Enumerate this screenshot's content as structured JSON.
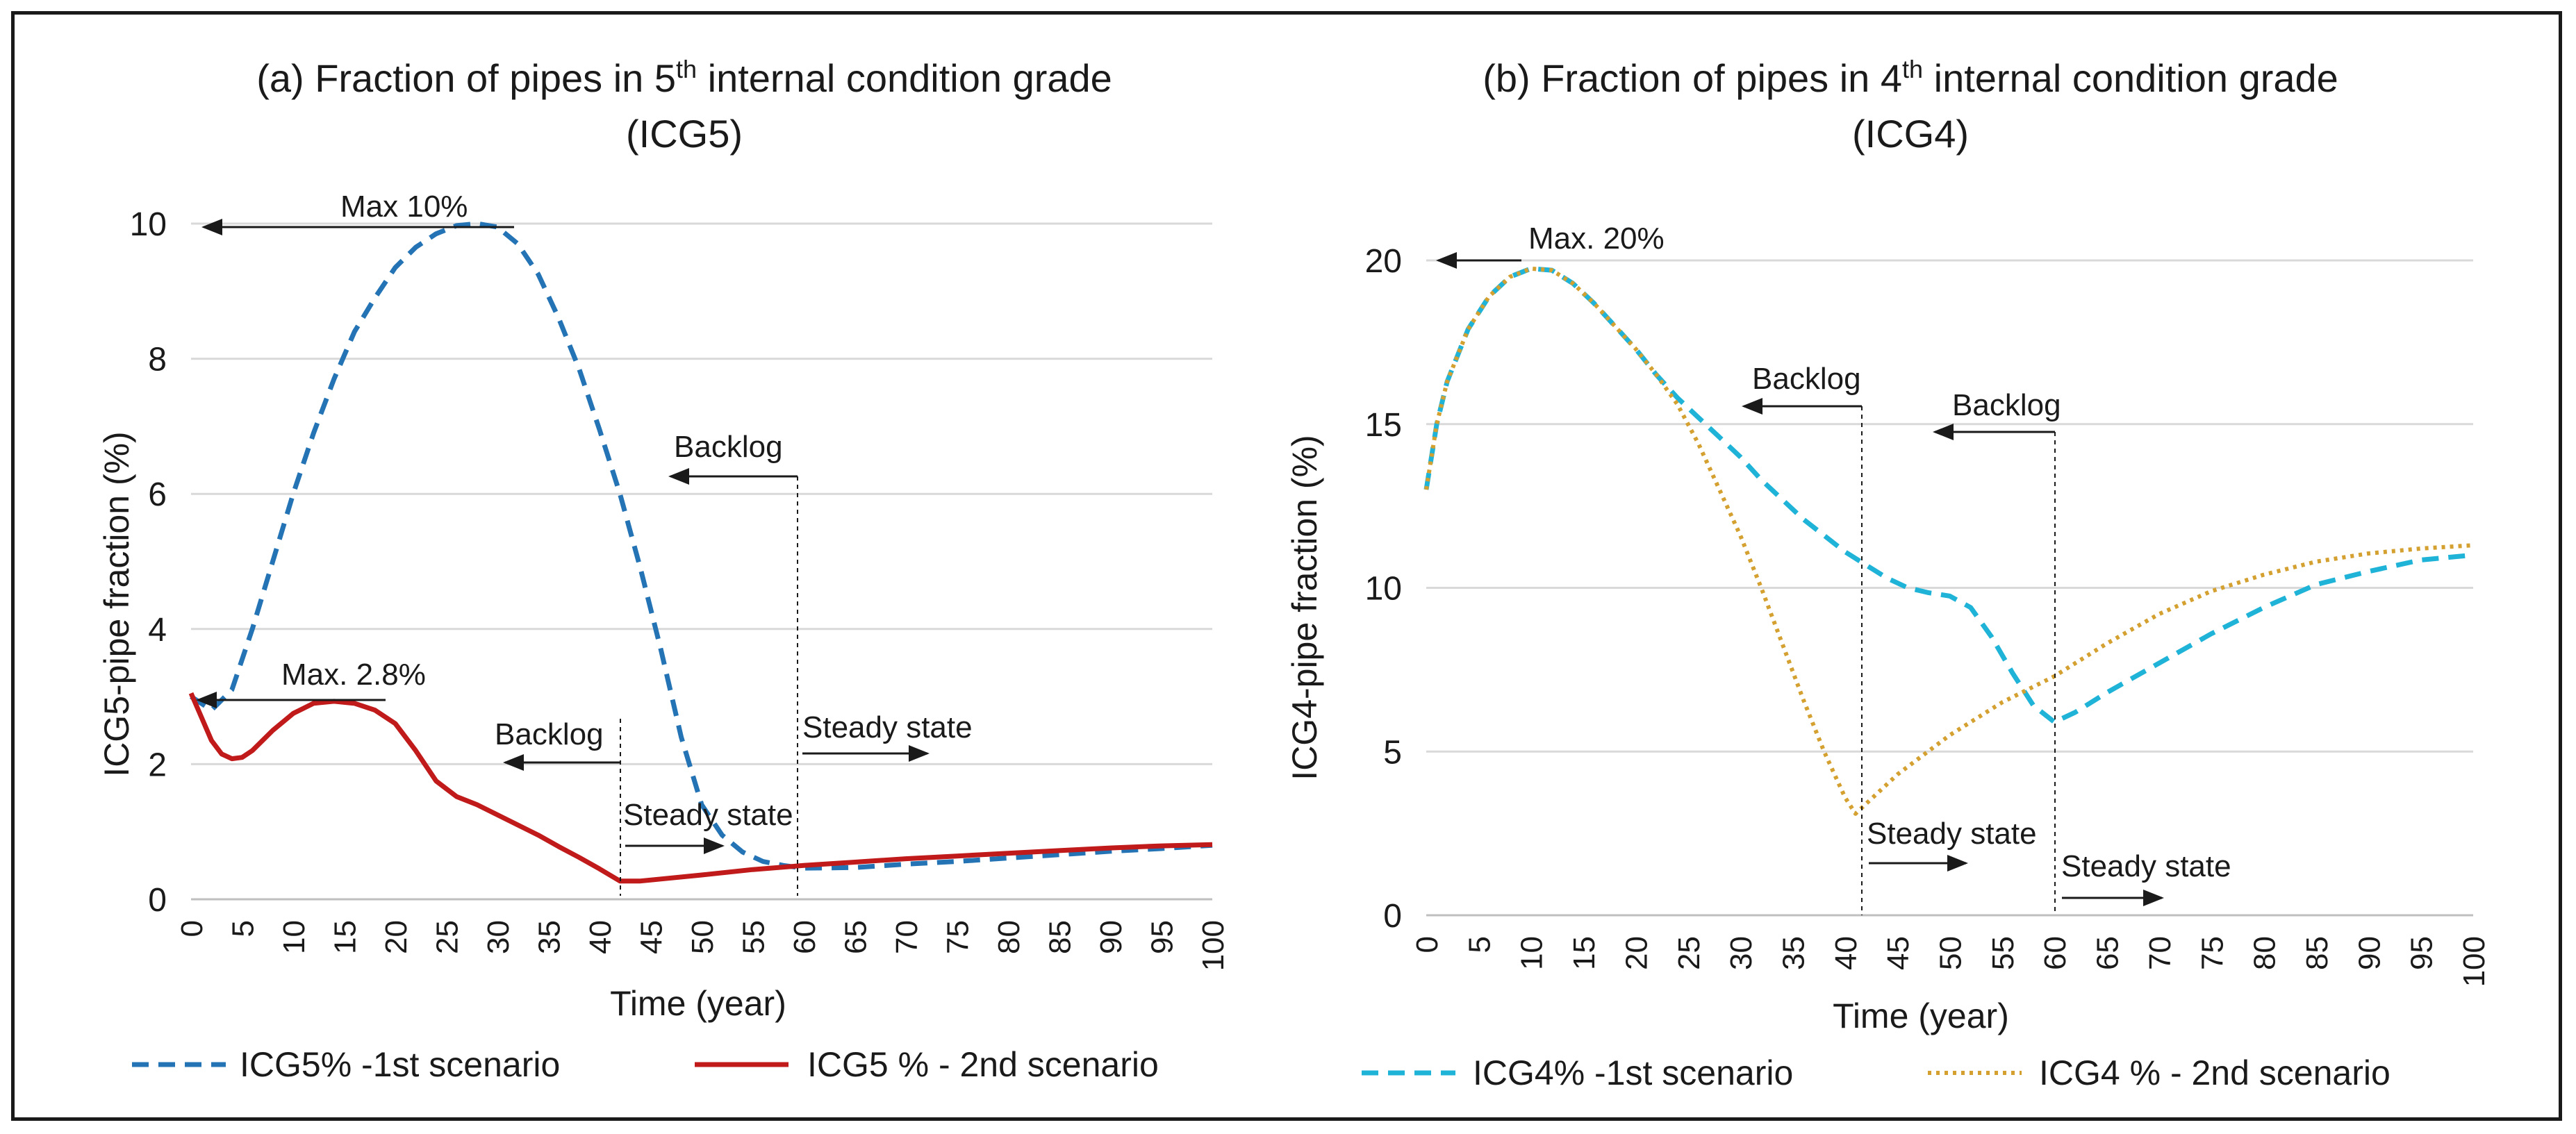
{
  "chart_data": [
    {
      "type": "line",
      "title": "(a) Fraction of pipes in 5",
      "title_sup": "th",
      "title_rest": " internal condition grade",
      "title_line2": "(ICG5)",
      "xlabel": "Time (year)",
      "ylabel": "ICG5-pipe fraction (%)",
      "xlim": [
        0,
        100
      ],
      "ylim": [
        0,
        10
      ],
      "x_ticks": [
        "0",
        "5",
        "10",
        "15",
        "20",
        "25",
        "30",
        "35",
        "40",
        "45",
        "50",
        "55",
        "60",
        "65",
        "70",
        "75",
        "80",
        "85",
        "90",
        "95",
        "100"
      ],
      "y_ticks": [
        "0",
        "2",
        "4",
        "6",
        "8",
        "10"
      ],
      "grid": "horizontal",
      "legend_position": "bottom",
      "series": [
        {
          "name": "ICG5% -1st scenario",
          "color": "#2474b5",
          "style": "dashed",
          "x": [
            0,
            2,
            4,
            6,
            8,
            10,
            12,
            14,
            16,
            18,
            20,
            22,
            24,
            26,
            28,
            30,
            32,
            34,
            36,
            38,
            40,
            42,
            44,
            46,
            48,
            50,
            52,
            54,
            56,
            58,
            60,
            65,
            70,
            75,
            80,
            85,
            90,
            95,
            100
          ],
          "y": [
            3.0,
            2.8,
            3.1,
            4.0,
            5.0,
            6.0,
            6.9,
            7.7,
            8.4,
            8.9,
            9.35,
            9.65,
            9.85,
            9.97,
            10.0,
            9.95,
            9.7,
            9.25,
            8.6,
            7.85,
            6.95,
            6.0,
            4.9,
            3.7,
            2.4,
            1.4,
            0.95,
            0.7,
            0.56,
            0.5,
            0.46,
            0.47,
            0.52,
            0.56,
            0.61,
            0.66,
            0.71,
            0.75,
            0.8
          ]
        },
        {
          "name": "ICG5 % - 2nd scenario",
          "color": "#c01a1a",
          "style": "solid",
          "x": [
            0,
            1,
            2,
            3,
            4,
            5,
            6,
            8,
            10,
            12,
            14,
            16,
            18,
            20,
            22,
            24,
            26,
            28,
            30,
            32,
            34,
            36,
            38,
            40,
            42,
            44,
            46,
            50,
            55,
            60,
            65,
            70,
            75,
            80,
            85,
            90,
            95,
            100
          ],
          "y": [
            3.05,
            2.7,
            2.35,
            2.15,
            2.08,
            2.1,
            2.2,
            2.5,
            2.75,
            2.9,
            2.93,
            2.9,
            2.8,
            2.6,
            2.2,
            1.75,
            1.52,
            1.4,
            1.25,
            1.1,
            0.95,
            0.78,
            0.62,
            0.45,
            0.27,
            0.27,
            0.3,
            0.36,
            0.44,
            0.5,
            0.55,
            0.6,
            0.64,
            0.68,
            0.72,
            0.76,
            0.79,
            0.81
          ]
        }
      ],
      "annotations": {
        "max1": "Max 10%",
        "max2": "Max. 2.8%",
        "backlog1": "Backlog",
        "backlog2": "Backlog",
        "steady1": "Steady state",
        "steady2": "Steady state"
      }
    },
    {
      "type": "line",
      "title": "(b) Fraction of pipes in 4",
      "title_sup": "th",
      "title_rest": " internal condition grade",
      "title_line2": "(ICG4)",
      "xlabel": "Time (year)",
      "ylabel": "ICG4-pipe fraction (%)",
      "xlim": [
        0,
        100
      ],
      "ylim": [
        0,
        20
      ],
      "x_ticks": [
        "0",
        "5",
        "10",
        "15",
        "20",
        "25",
        "30",
        "35",
        "40",
        "45",
        "50",
        "55",
        "60",
        "65",
        "70",
        "75",
        "80",
        "85",
        "90",
        "95",
        "100"
      ],
      "y_ticks": [
        "0",
        "5",
        "10",
        "15",
        "20"
      ],
      "grid": "horizontal",
      "legend_position": "bottom",
      "series": [
        {
          "name": "ICG4% -1st scenario",
          "color": "#1fb3d8",
          "style": "dashed",
          "x": [
            0,
            1,
            2,
            4,
            6,
            8,
            10,
            12,
            14,
            16,
            18,
            20,
            22,
            24,
            26,
            28,
            30,
            32,
            34,
            36,
            38,
            40,
            42,
            44,
            46,
            48,
            50,
            52,
            54,
            56,
            58,
            60,
            62,
            65,
            70,
            75,
            80,
            85,
            90,
            95,
            100
          ],
          "y": [
            13.0,
            15.0,
            16.3,
            17.9,
            18.9,
            19.5,
            19.75,
            19.7,
            19.3,
            18.7,
            18.0,
            17.3,
            16.5,
            15.8,
            15.2,
            14.6,
            14.0,
            13.3,
            12.7,
            12.1,
            11.6,
            11.1,
            10.7,
            10.3,
            10.0,
            9.85,
            9.75,
            9.4,
            8.5,
            7.4,
            6.4,
            5.9,
            6.2,
            6.8,
            7.7,
            8.6,
            9.4,
            10.1,
            10.5,
            10.85,
            11.0
          ]
        },
        {
          "name": "ICG4 % - 2nd scenario",
          "color": "#d4a030",
          "style": "dotted",
          "x": [
            0,
            1,
            2,
            4,
            6,
            8,
            10,
            12,
            14,
            16,
            18,
            20,
            22,
            24,
            26,
            28,
            30,
            32,
            34,
            36,
            38,
            40,
            41,
            42,
            45,
            50,
            55,
            60,
            65,
            70,
            75,
            80,
            85,
            90,
            95,
            100
          ],
          "y": [
            13.0,
            15.0,
            16.3,
            17.9,
            18.9,
            19.5,
            19.75,
            19.7,
            19.3,
            18.7,
            18.0,
            17.3,
            16.5,
            15.6,
            14.4,
            13.0,
            11.6,
            10.0,
            8.3,
            6.6,
            5.0,
            3.6,
            3.1,
            3.4,
            4.3,
            5.5,
            6.5,
            7.3,
            8.3,
            9.2,
            9.9,
            10.4,
            10.8,
            11.05,
            11.2,
            11.3
          ]
        }
      ],
      "annotations": {
        "max1": "Max. 20%",
        "backlog1": "Backlog",
        "backlog2": "Backlog",
        "steady1": "Steady state",
        "steady2": "Steady state"
      }
    }
  ]
}
